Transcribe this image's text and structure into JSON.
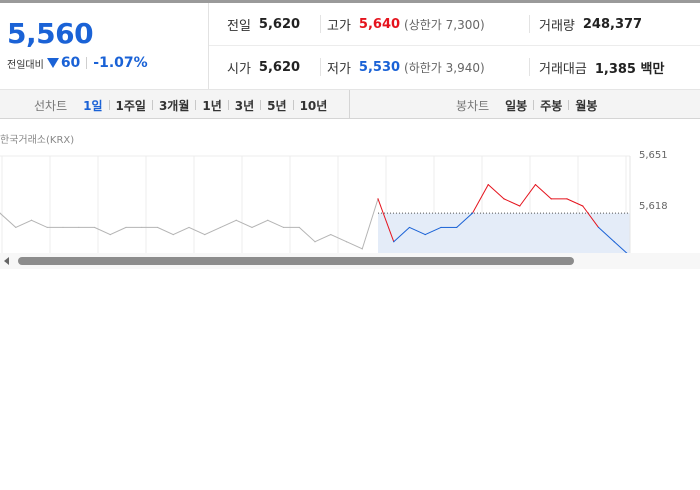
{
  "summary": {
    "current_price": "5,560",
    "change_label": "전일대비",
    "change_value": "60",
    "change_pct": "-1.07%",
    "direction_icon": "down-triangle-icon",
    "prev_close": {
      "label": "전일",
      "value": "5,620"
    },
    "high": {
      "label": "고가",
      "value": "5,640",
      "limit": "(상한가 7,300)"
    },
    "volume": {
      "label": "거래량",
      "value": "248,377"
    },
    "open": {
      "label": "시가",
      "value": "5,620"
    },
    "low": {
      "label": "저가",
      "value": "5,530",
      "limit": "(하한가 3,940)"
    },
    "trade_amount": {
      "label": "거래대금",
      "value": "1,385 백만"
    }
  },
  "tabs": {
    "line_chart_label": "선차트",
    "line_chart_periods": [
      "1일",
      "1주일",
      "3개월",
      "1년",
      "3년",
      "5년",
      "10년"
    ],
    "active_period": "1일",
    "candle_chart_label": "봉차트",
    "candle_chart_periods": [
      "일봉",
      "주봉",
      "월봉"
    ]
  },
  "chart_data": {
    "type": "line",
    "source": "한국거래소(KRX)",
    "y_tick_labels": [
      "5,651",
      "5,618"
    ],
    "reference_price": 5620,
    "ylim": [
      5590,
      5660
    ],
    "x": [
      0,
      5,
      10,
      15,
      20,
      25,
      30,
      35,
      40,
      45,
      50,
      55,
      60,
      65,
      70,
      75,
      80,
      85,
      90,
      95,
      100,
      105,
      110,
      115,
      120,
      125,
      130,
      135,
      140,
      145,
      150,
      155,
      160,
      165,
      170,
      175,
      180,
      185,
      190,
      195,
      200
    ],
    "values": [
      5620,
      5610,
      5615,
      5610,
      5610,
      5610,
      5610,
      5605,
      5610,
      5610,
      5610,
      5605,
      5610,
      5605,
      5610,
      5615,
      5610,
      5615,
      5610,
      5610,
      5600,
      5605,
      5600,
      5595,
      5630,
      5600,
      5610,
      5605,
      5610,
      5610,
      5620,
      5640,
      5630,
      5625,
      5640,
      5630,
      5630,
      5625,
      5610,
      5600,
      5590
    ],
    "colors": {
      "above": "#e5131d",
      "below": "#1a62d6",
      "past": "#b4b4b4",
      "fill": "#e4ecf8"
    }
  },
  "scroll": {
    "left_icon": "scroll-left-arrow-icon"
  }
}
